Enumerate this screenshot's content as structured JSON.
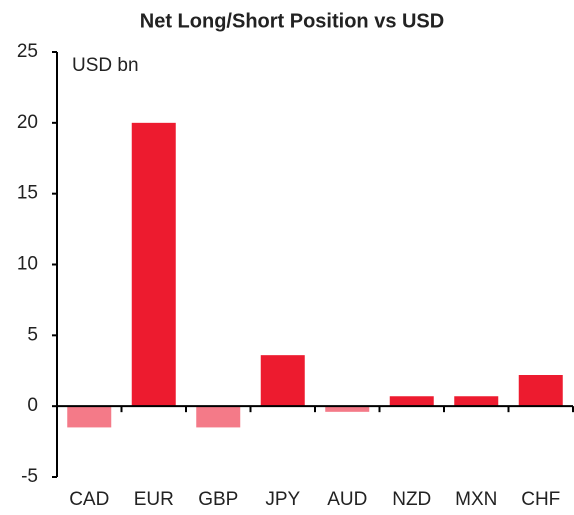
{
  "chart_data": {
    "type": "bar",
    "title": "Net Long/Short Position vs USD",
    "annotation": "USD bn",
    "categories": [
      "CAD",
      "EUR",
      "GBP",
      "JPY",
      "AUD",
      "NZD",
      "MXN",
      "CHF"
    ],
    "values": [
      -1.5,
      20,
      -1.5,
      3.6,
      -0.4,
      0.7,
      0.7,
      2.2
    ],
    "colors": [
      "#f47a88",
      "#ed1b2f",
      "#f47a88",
      "#ed1b2f",
      "#f47a88",
      "#ed1b2f",
      "#ed1b2f",
      "#ed1b2f"
    ],
    "ylim": [
      -5,
      25
    ],
    "yticks": [
      -5,
      0,
      5,
      10,
      15,
      20,
      25
    ],
    "grid": false
  }
}
